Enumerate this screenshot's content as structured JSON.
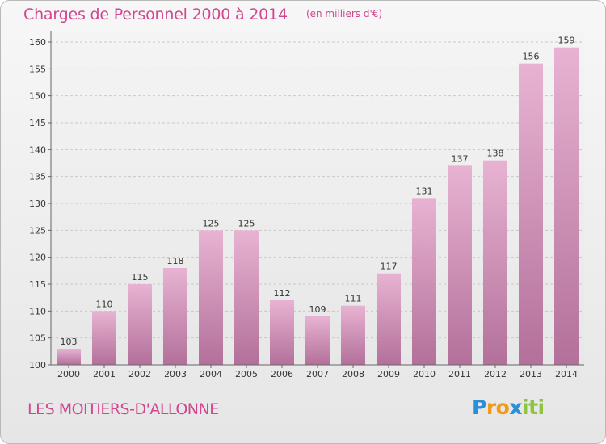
{
  "title": "Charges de Personnel 2000 à 2014",
  "subtitle": "(en milliers d'€)",
  "commune": "LES MOITIERS-D'ALLONNE",
  "logo": {
    "text": "Proxiti",
    "letters": [
      {
        "char": "P",
        "color": "#2a8fd6"
      },
      {
        "char": "r",
        "color": "#f29a1e"
      },
      {
        "char": "o",
        "color": "#f29a1e"
      },
      {
        "char": "x",
        "color": "#2a8fd6"
      },
      {
        "char": "i",
        "color": "#8cc63e"
      },
      {
        "char": "t",
        "color": "#8cc63e"
      },
      {
        "char": "i",
        "color": "#8cc63e"
      }
    ]
  },
  "colors": {
    "text_accent": "#d1478f",
    "bar_light": "#e8b3d2",
    "bar_dark": "#b3709a"
  },
  "chart_data": {
    "type": "bar",
    "title": "Charges de Personnel 2000 à 2014",
    "subtitle": "(en milliers d'€)",
    "categories": [
      "2000",
      "2001",
      "2002",
      "2003",
      "2004",
      "2005",
      "2006",
      "2007",
      "2008",
      "2009",
      "2010",
      "2011",
      "2012",
      "2013",
      "2014"
    ],
    "values": [
      103,
      110,
      115,
      118,
      125,
      125,
      112,
      109,
      111,
      117,
      131,
      137,
      138,
      156,
      159
    ],
    "ylim": [
      100,
      160
    ],
    "yticks": [
      100,
      105,
      110,
      115,
      120,
      125,
      130,
      135,
      140,
      145,
      150,
      155,
      160
    ],
    "grid": true,
    "data_labels": true
  }
}
